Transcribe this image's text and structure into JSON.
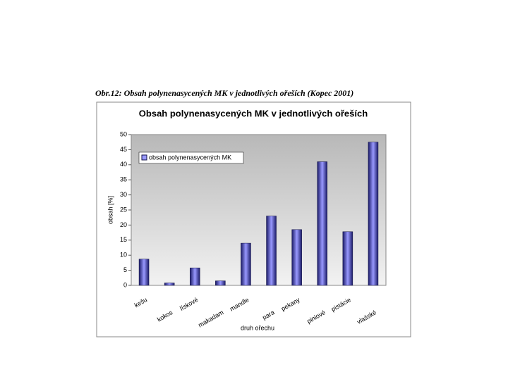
{
  "caption": "Obr.12: Obsah polynenasycených MK v jednotlivých ořeších (Kopec 2001)",
  "chart_data": {
    "type": "bar",
    "title": "Obsah polynenasycených MK v jednotlivých ořeších",
    "categories": [
      "kešu",
      "kokos",
      "lískové",
      "makadam",
      "mandle",
      "para",
      "pekany",
      "piniové",
      "pistácie",
      "vlašské"
    ],
    "series": [
      {
        "name": "obsah polynenasycených MK",
        "color": "#9999ff",
        "values": [
          8.7,
          0.8,
          5.8,
          1.5,
          14,
          23,
          18.5,
          41,
          17.8,
          47.5
        ]
      }
    ],
    "x_label": "druh ořechu",
    "y_label": "obsah [%]",
    "ylim": [
      0,
      50
    ],
    "yticks": [
      0,
      5,
      10,
      15,
      20,
      25,
      30,
      35,
      40,
      45,
      50
    ],
    "grid": false,
    "legend": "upper left"
  }
}
